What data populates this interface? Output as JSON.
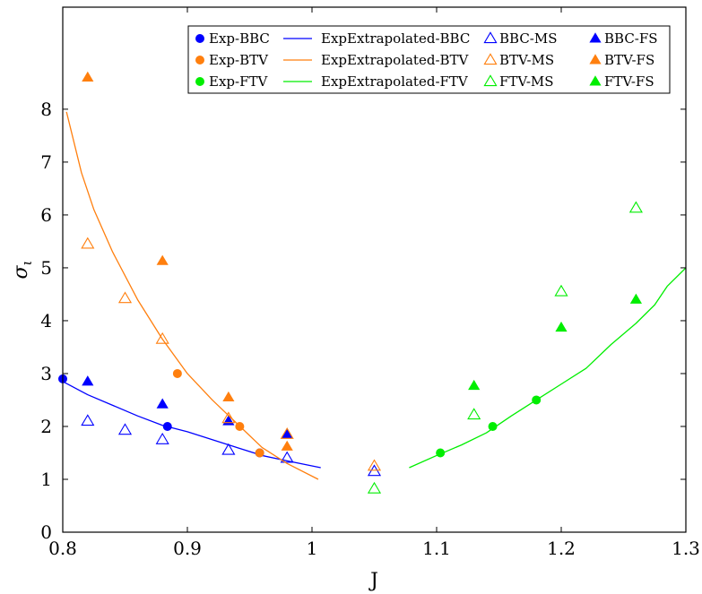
{
  "chart_data": {
    "type": "scatter",
    "xlabel": "J",
    "ylabel": "σ",
    "ylabel_subscript": "ι",
    "xlim": [
      0.8,
      1.3
    ],
    "ylim": [
      0,
      10
    ],
    "x_ticks": [
      0.8,
      0.9,
      1.0,
      1.1,
      1.2,
      1.3
    ],
    "x_tick_labels": [
      "0.8",
      "0.9",
      "1",
      "1.1",
      "1.2",
      "1.3"
    ],
    "y_ticks": [
      0,
      1,
      2,
      3,
      4,
      5,
      6,
      7,
      8
    ],
    "y_tick_labels": [
      "0",
      "1",
      "2",
      "3",
      "4",
      "5",
      "6",
      "7",
      "8"
    ],
    "grid": false,
    "legend_position": "top-right",
    "colors": {
      "BBC": "#0000ff",
      "BTV": "#ff7f0e",
      "FTV": "#00ee00"
    },
    "series": [
      {
        "name": "Exp-BBC",
        "kind": "dot",
        "color": "#0000ff",
        "x": [
          0.8,
          0.884,
          0.958
        ],
        "y": [
          2.9,
          2.0,
          1.5
        ]
      },
      {
        "name": "ExpExtrapolated-BBC",
        "kind": "line",
        "color": "#0000ff",
        "x": [
          0.8,
          0.82,
          0.84,
          0.86,
          0.88,
          0.9,
          0.92,
          0.94,
          0.96,
          0.98,
          1.007
        ],
        "y": [
          2.85,
          2.6,
          2.4,
          2.2,
          2.02,
          1.9,
          1.75,
          1.6,
          1.45,
          1.35,
          1.22
        ]
      },
      {
        "name": "BBC-MS",
        "kind": "open-triangle",
        "color": "#0000ff",
        "x": [
          0.82,
          0.85,
          0.88,
          0.933,
          0.98,
          1.05
        ],
        "y": [
          2.1,
          1.93,
          1.75,
          1.55,
          1.4,
          1.15
        ]
      },
      {
        "name": "BBC-FS",
        "kind": "filled-triangle",
        "color": "#0000ff",
        "x": [
          0.82,
          0.88,
          0.933,
          0.98
        ],
        "y": [
          2.85,
          2.42,
          2.1,
          1.85
        ]
      },
      {
        "name": "Exp-BTV",
        "kind": "dot",
        "color": "#ff7f0e",
        "x": [
          0.892,
          0.942,
          0.958
        ],
        "y": [
          3.0,
          2.0,
          1.5
        ]
      },
      {
        "name": "ExpExtrapolated-BTV",
        "kind": "line",
        "color": "#ff7f0e",
        "x": [
          0.803,
          0.815,
          0.825,
          0.84,
          0.86,
          0.88,
          0.9,
          0.92,
          0.94,
          0.96,
          0.98,
          1.005
        ],
        "y": [
          7.95,
          6.8,
          6.1,
          5.3,
          4.4,
          3.65,
          3.0,
          2.5,
          2.05,
          1.6,
          1.3,
          1.0
        ]
      },
      {
        "name": "BTV-MS",
        "kind": "open-triangle",
        "color": "#ff7f0e",
        "x": [
          0.82,
          0.85,
          0.88,
          0.933,
          0.98,
          1.05
        ],
        "y": [
          5.45,
          4.42,
          3.65,
          2.15,
          1.85,
          1.25
        ]
      },
      {
        "name": "BTV-FS",
        "kind": "filled-triangle",
        "color": "#ff7f0e",
        "x": [
          0.82,
          0.88,
          0.933,
          0.98
        ],
        "y": [
          8.6,
          5.13,
          2.55,
          1.62
        ]
      },
      {
        "name": "Exp-FTV",
        "kind": "dot",
        "color": "#00ee00",
        "x": [
          1.103,
          1.145,
          1.18
        ],
        "y": [
          1.5,
          2.0,
          2.5
        ]
      },
      {
        "name": "ExpExtrapolated-FTV",
        "kind": "line",
        "color": "#00ee00",
        "x": [
          1.078,
          1.1,
          1.12,
          1.14,
          1.16,
          1.18,
          1.2,
          1.22,
          1.24,
          1.26,
          1.275,
          1.285,
          1.3
        ],
        "y": [
          1.22,
          1.45,
          1.65,
          1.88,
          2.2,
          2.5,
          2.8,
          3.1,
          3.55,
          3.95,
          4.3,
          4.65,
          5.0
        ]
      },
      {
        "name": "FTV-MS",
        "kind": "open-triangle",
        "color": "#00ee00",
        "x": [
          1.05,
          1.13,
          1.2,
          1.26
        ],
        "y": [
          0.82,
          2.22,
          4.55,
          6.13
        ]
      },
      {
        "name": "FTV-FS",
        "kind": "filled-triangle",
        "color": "#00ee00",
        "x": [
          1.13,
          1.2,
          1.26
        ],
        "y": [
          2.77,
          3.87,
          4.4
        ]
      }
    ],
    "legend_order": [
      [
        "Exp-BBC",
        "ExpExtrapolated-BBC",
        "BBC-MS",
        "BBC-FS"
      ],
      [
        "Exp-BTV",
        "ExpExtrapolated-BTV",
        "BTV-MS",
        "BTV-FS"
      ],
      [
        "Exp-FTV",
        "ExpExtrapolated-FTV",
        "FTV-MS",
        "FTV-FS"
      ]
    ]
  }
}
